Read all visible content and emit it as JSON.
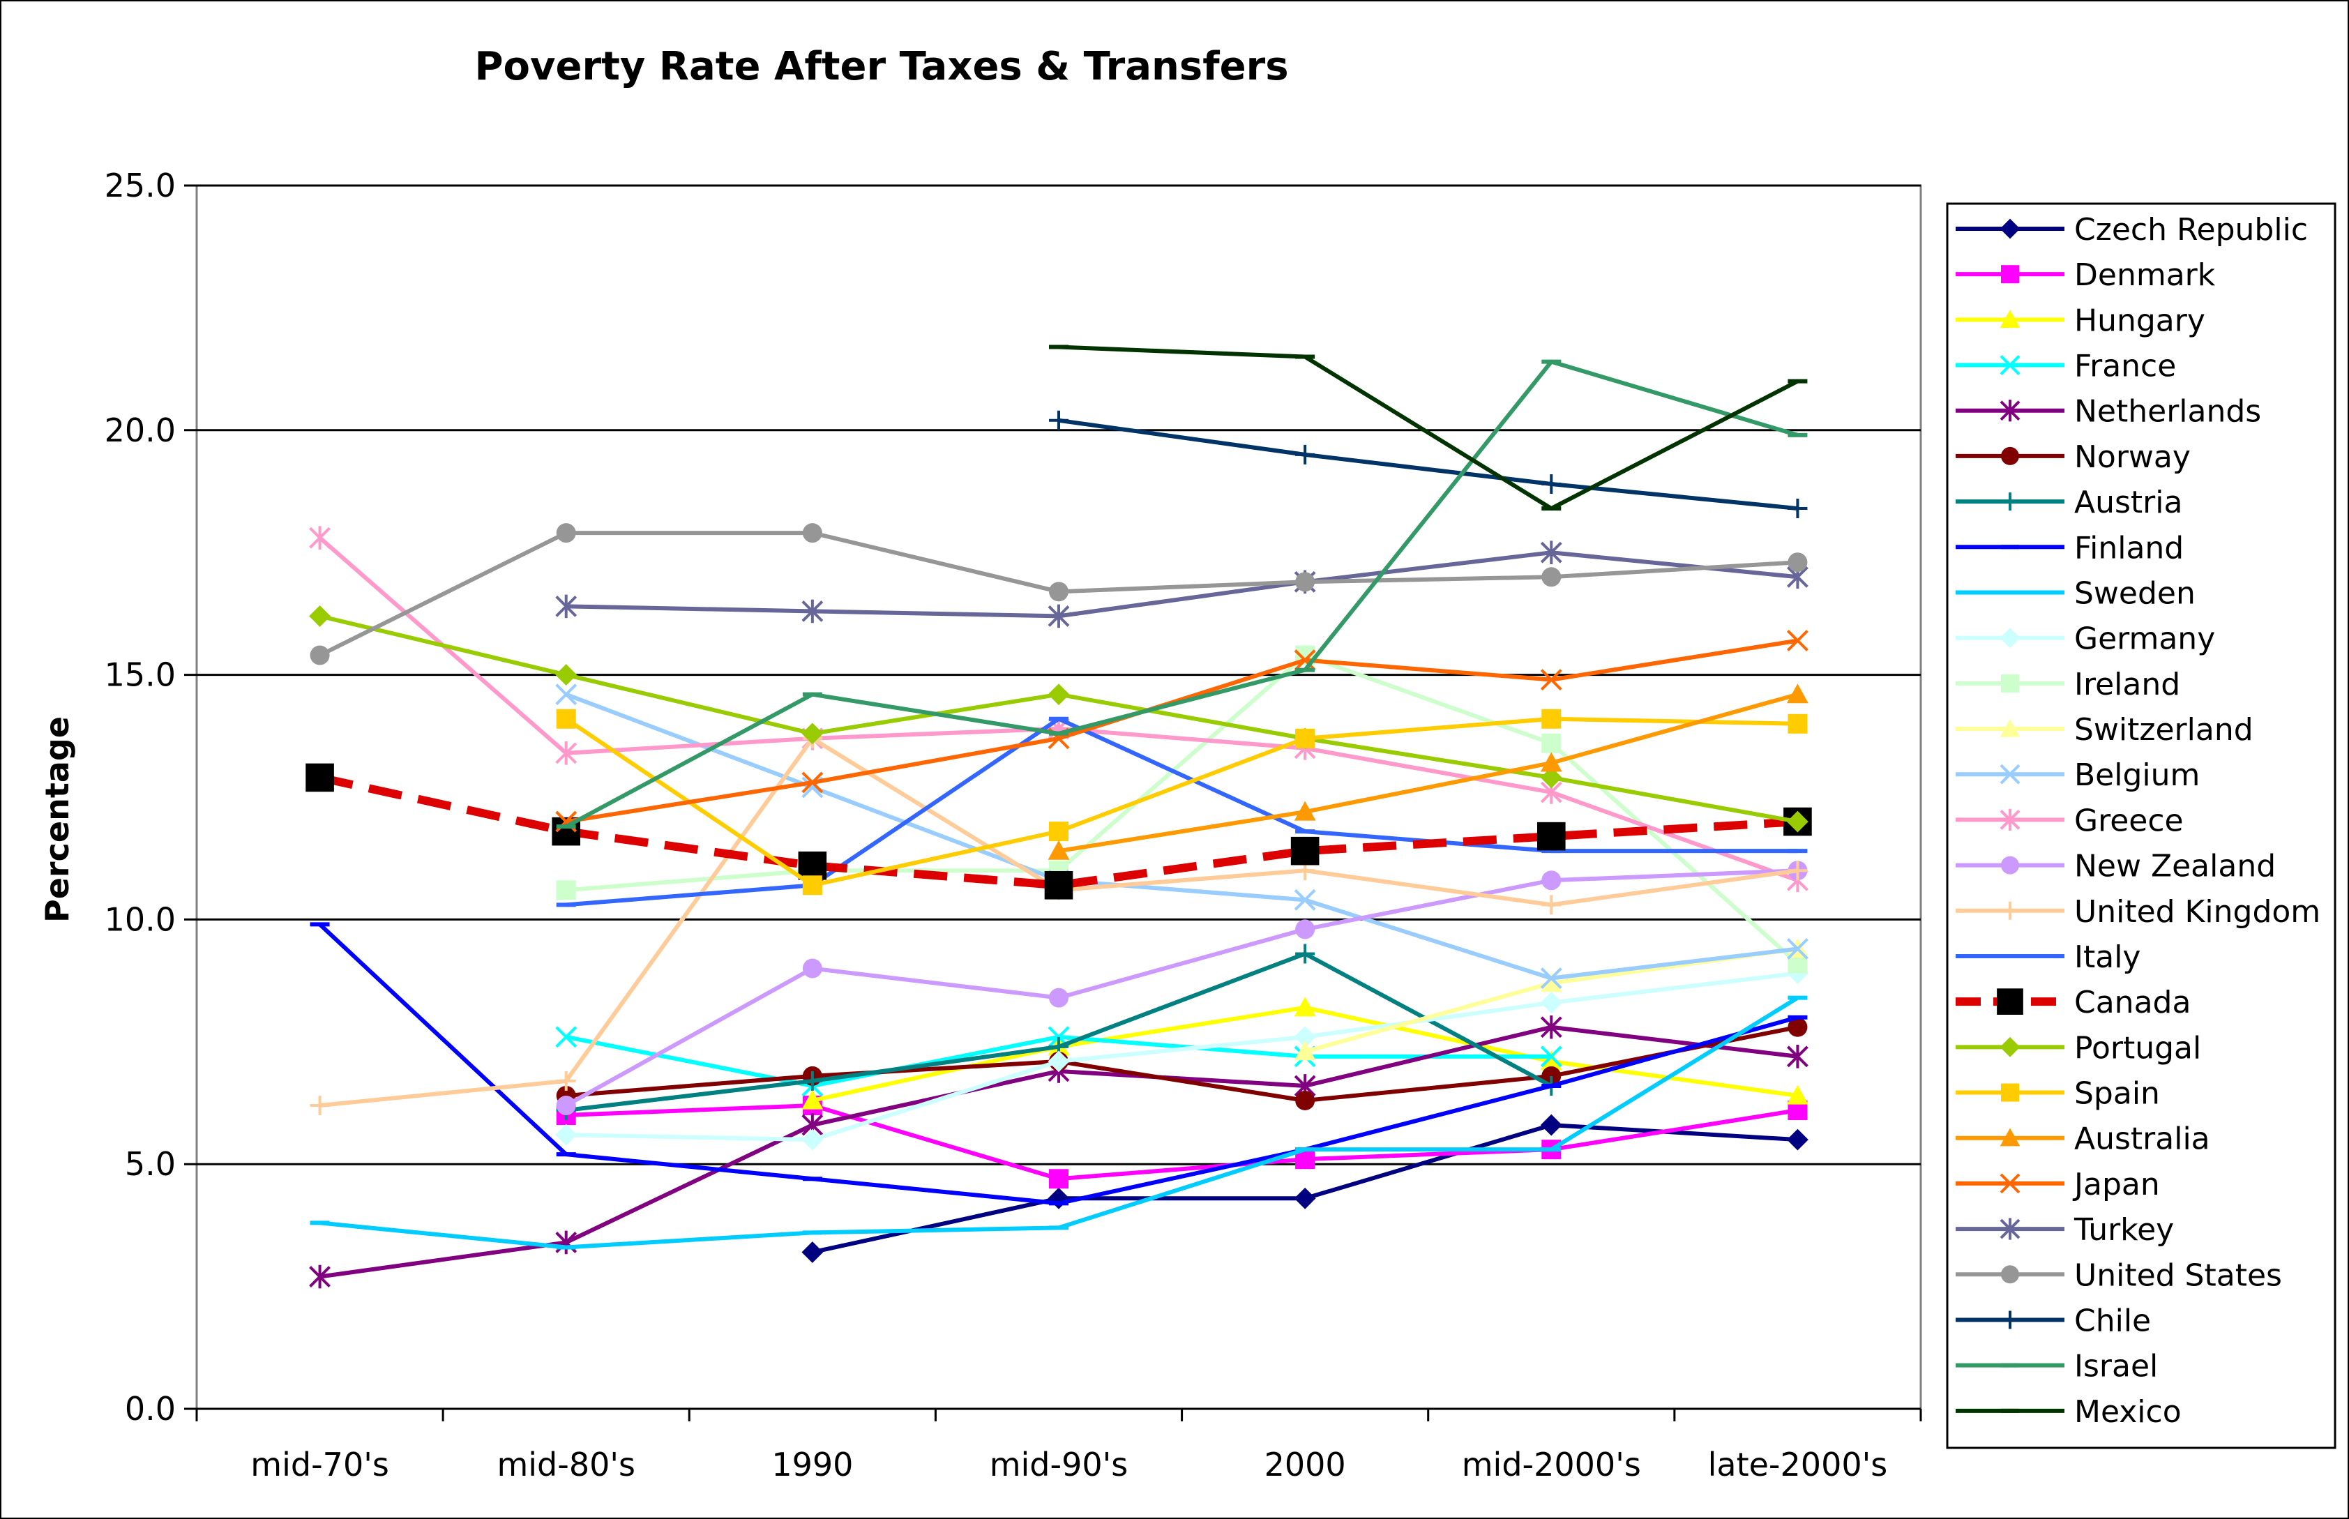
{
  "chart_data": {
    "type": "line",
    "title": "Poverty Rate After Taxes & Transfers",
    "xlabel": "",
    "ylabel": "Percentage",
    "categories": [
      "mid-70's",
      "mid-80's",
      "1990",
      "mid-90's",
      "2000",
      "mid-2000's",
      "late-2000's"
    ],
    "ylim": [
      0,
      25
    ],
    "yticks": [
      "0.0",
      "5.0",
      "10.0",
      "15.0",
      "20.0",
      "25.0"
    ],
    "grid": "horizontal",
    "legend_position": "right",
    "series": [
      {
        "name": "Czech Republic",
        "color": "#000080",
        "marker": "diamond",
        "values": [
          null,
          null,
          3.2,
          4.3,
          4.3,
          5.8,
          5.5
        ]
      },
      {
        "name": "Denmark",
        "color": "#FF00FF",
        "marker": "square",
        "values": [
          null,
          6.0,
          6.2,
          4.7,
          5.1,
          5.3,
          6.1
        ]
      },
      {
        "name": "Hungary",
        "color": "#FFFF00",
        "marker": "triangle",
        "values": [
          null,
          null,
          6.3,
          7.4,
          8.2,
          7.1,
          6.4
        ]
      },
      {
        "name": "France",
        "color": "#00FFFF",
        "marker": "x",
        "values": [
          null,
          7.6,
          6.6,
          7.6,
          7.2,
          7.2,
          null
        ]
      },
      {
        "name": "Netherlands",
        "color": "#800080",
        "marker": "star",
        "values": [
          2.7,
          3.4,
          5.8,
          6.9,
          6.6,
          7.8,
          7.2
        ]
      },
      {
        "name": "Norway",
        "color": "#800000",
        "marker": "circle",
        "values": [
          null,
          6.4,
          6.8,
          7.1,
          6.3,
          6.8,
          7.8
        ]
      },
      {
        "name": "Austria",
        "color": "#008080",
        "marker": "plus",
        "values": [
          null,
          6.1,
          6.7,
          7.4,
          9.3,
          6.6,
          null
        ]
      },
      {
        "name": "Finland",
        "color": "#0000FF",
        "marker": "dash",
        "values": [
          9.9,
          5.2,
          4.7,
          4.2,
          5.3,
          6.6,
          8.0
        ]
      },
      {
        "name": "Sweden",
        "color": "#00CCFF",
        "marker": "dash",
        "values": [
          3.8,
          3.3,
          3.6,
          3.7,
          5.3,
          5.3,
          8.4
        ]
      },
      {
        "name": "Germany",
        "color": "#CCFFFF",
        "marker": "diamond",
        "values": [
          null,
          5.6,
          5.5,
          7.1,
          7.6,
          8.3,
          8.9
        ]
      },
      {
        "name": "Ireland",
        "color": "#CCFFCC",
        "marker": "square",
        "values": [
          null,
          10.6,
          11.0,
          11.0,
          15.4,
          13.6,
          9.1
        ]
      },
      {
        "name": "Switzerland",
        "color": "#FFFF99",
        "marker": "triangle",
        "values": [
          null,
          null,
          null,
          null,
          7.3,
          8.7,
          9.4
        ]
      },
      {
        "name": "Belgium",
        "color": "#99CCFF",
        "marker": "x",
        "values": [
          null,
          14.6,
          12.7,
          10.8,
          10.4,
          8.8,
          9.4
        ]
      },
      {
        "name": "Greece",
        "color": "#FF99CC",
        "marker": "star",
        "values": [
          17.8,
          13.4,
          13.7,
          13.9,
          13.5,
          12.6,
          10.8
        ]
      },
      {
        "name": "New Zealand",
        "color": "#CC99FF",
        "marker": "circle",
        "values": [
          null,
          6.2,
          9.0,
          8.4,
          9.8,
          10.8,
          11.0
        ]
      },
      {
        "name": "United Kingdom",
        "color": "#FFCC99",
        "marker": "plus",
        "values": [
          6.2,
          6.7,
          13.7,
          10.6,
          11.0,
          10.3,
          11.0
        ]
      },
      {
        "name": "Italy",
        "color": "#3366FF",
        "marker": "dash",
        "values": [
          null,
          10.3,
          10.7,
          14.1,
          11.8,
          11.4,
          11.4
        ]
      },
      {
        "name": "Canada",
        "color": "#DD0000",
        "marker": "square-black",
        "dashed": true,
        "values": [
          12.9,
          11.8,
          11.1,
          10.7,
          11.4,
          11.7,
          12.0
        ]
      },
      {
        "name": "Portugal",
        "color": "#99CC00",
        "marker": "diamond",
        "values": [
          16.2,
          15.0,
          13.8,
          14.6,
          13.7,
          12.9,
          12.0
        ]
      },
      {
        "name": "Spain",
        "color": "#FFCC00",
        "marker": "square",
        "values": [
          null,
          14.1,
          10.7,
          11.8,
          13.7,
          14.1,
          14.0
        ]
      },
      {
        "name": "Australia",
        "color": "#FF9900",
        "marker": "triangle",
        "values": [
          null,
          null,
          null,
          11.4,
          12.2,
          13.2,
          14.6
        ]
      },
      {
        "name": "Japan",
        "color": "#FF6600",
        "marker": "x",
        "values": [
          null,
          12.0,
          12.8,
          13.7,
          15.3,
          14.9,
          15.7
        ]
      },
      {
        "name": "Turkey",
        "color": "#666699",
        "marker": "star",
        "values": [
          null,
          16.4,
          16.3,
          16.2,
          16.9,
          17.5,
          17.0
        ]
      },
      {
        "name": "United States",
        "color": "#969696",
        "marker": "circle",
        "values": [
          15.4,
          17.9,
          17.9,
          16.7,
          16.9,
          17.0,
          17.3
        ]
      },
      {
        "name": "Chile",
        "color": "#003366",
        "marker": "plus",
        "values": [
          null,
          null,
          null,
          20.2,
          19.5,
          18.9,
          18.4
        ]
      },
      {
        "name": "Israel",
        "color": "#339966",
        "marker": "dash",
        "values": [
          null,
          11.9,
          14.6,
          13.8,
          15.1,
          21.4,
          19.9
        ]
      },
      {
        "name": "Mexico",
        "color": "#003300",
        "marker": "dash",
        "values": [
          null,
          null,
          null,
          21.7,
          21.5,
          18.4,
          21.0
        ]
      }
    ]
  }
}
